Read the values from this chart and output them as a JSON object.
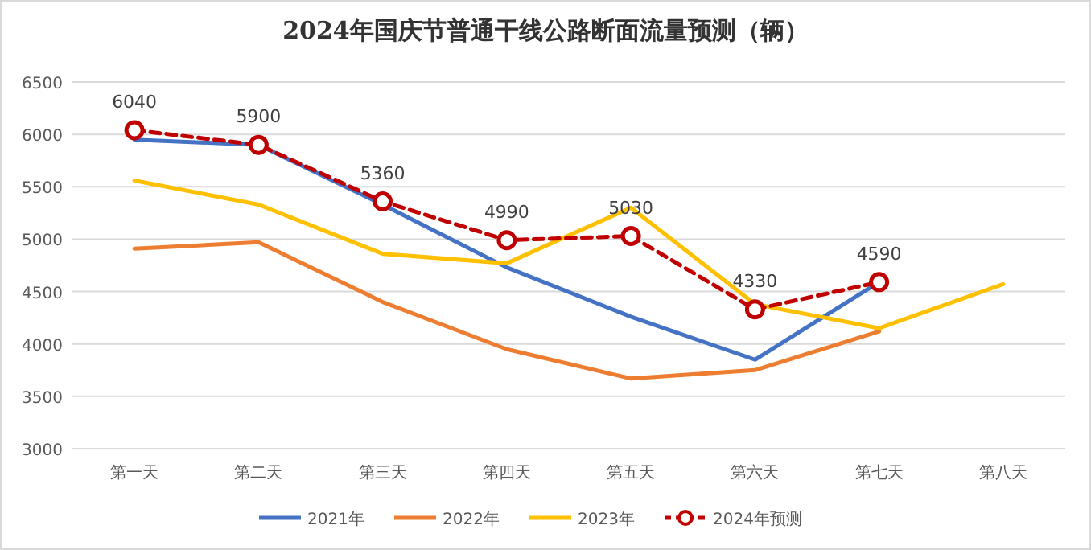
{
  "chart_data": {
    "type": "line",
    "title": "2024年国庆节普通干线公路断面流量预测（辆）",
    "categories": [
      "第一天",
      "第二天",
      "第三天",
      "第四天",
      "第五天",
      "第六天",
      "第七天",
      "第八天"
    ],
    "ylim": [
      3000,
      6500
    ],
    "yticks": [
      3000,
      3500,
      4000,
      4500,
      5000,
      5500,
      6000,
      6500
    ],
    "grid": "y",
    "legend": "bottom",
    "series": [
      {
        "name": "2021年",
        "color": "#4472c4",
        "values": [
          5950,
          5900,
          5330,
          4730,
          4260,
          3850,
          4590,
          null
        ],
        "marker": "none",
        "line_style": "solid"
      },
      {
        "name": "2022年",
        "color": "#ed7d31",
        "values": [
          4910,
          4970,
          4400,
          3950,
          3670,
          3750,
          4120,
          null
        ],
        "marker": "none",
        "line_style": "solid"
      },
      {
        "name": "2023年",
        "color": "#ffc000",
        "values": [
          5560,
          5330,
          4860,
          4770,
          5300,
          4380,
          4150,
          4570
        ],
        "marker": "none",
        "line_style": "solid"
      },
      {
        "name": "2024年预测",
        "color": "#c00000",
        "values": [
          6040,
          5900,
          5360,
          4990,
          5030,
          4330,
          4590,
          null
        ],
        "marker": "circle",
        "line_style": "dashed",
        "value_labels": [
          "6040",
          "5900",
          "5360",
          "4990",
          "5030",
          "4330",
          "4590",
          null
        ]
      }
    ]
  }
}
